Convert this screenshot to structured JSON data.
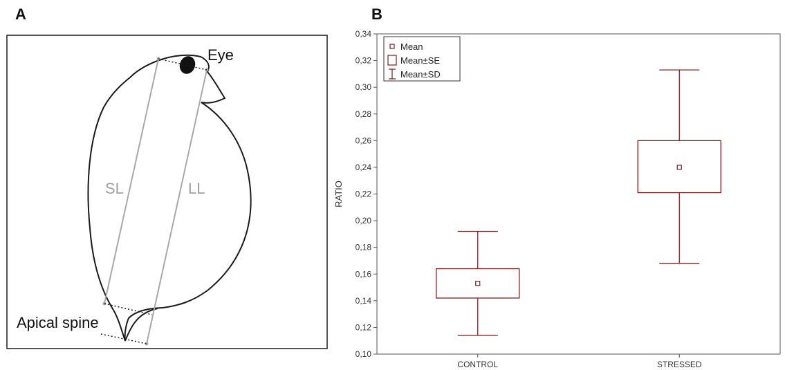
{
  "panel_a": {
    "letter": "A",
    "labels": {
      "eye": "Eye",
      "sl": "SL",
      "ll": "LL",
      "apical_spine": "Apical spine"
    }
  },
  "panel_b": {
    "letter": "B"
  },
  "colors": {
    "box": "#7a1f1f",
    "outline": "#1a1a1a",
    "measure_line": "#a8a8a8"
  },
  "chart_data": {
    "type": "box",
    "ylabel": "RATIO",
    "xlabel": "",
    "ylim": [
      0.1,
      0.34
    ],
    "yticks": [
      "0,10",
      "0,12",
      "0,14",
      "0,16",
      "0,18",
      "0,20",
      "0,22",
      "0,24",
      "0,26",
      "0,28",
      "0,30",
      "0,32",
      "0,34"
    ],
    "ytick_values": [
      0.1,
      0.12,
      0.14,
      0.16,
      0.18,
      0.2,
      0.22,
      0.24,
      0.26,
      0.28,
      0.3,
      0.32,
      0.34
    ],
    "categories": [
      "CONTROL",
      "STRESSED"
    ],
    "groups": [
      {
        "name": "CONTROL",
        "mean": 0.153,
        "se_low": 0.142,
        "se_high": 0.164,
        "sd_low": 0.114,
        "sd_high": 0.192
      },
      {
        "name": "STRESSED",
        "mean": 0.24,
        "se_low": 0.221,
        "se_high": 0.26,
        "sd_low": 0.168,
        "sd_high": 0.313
      }
    ],
    "legend": {
      "position": "top-left",
      "entries": [
        "Mean",
        "Mean±SE",
        "Mean±SD"
      ]
    },
    "grid": false
  }
}
